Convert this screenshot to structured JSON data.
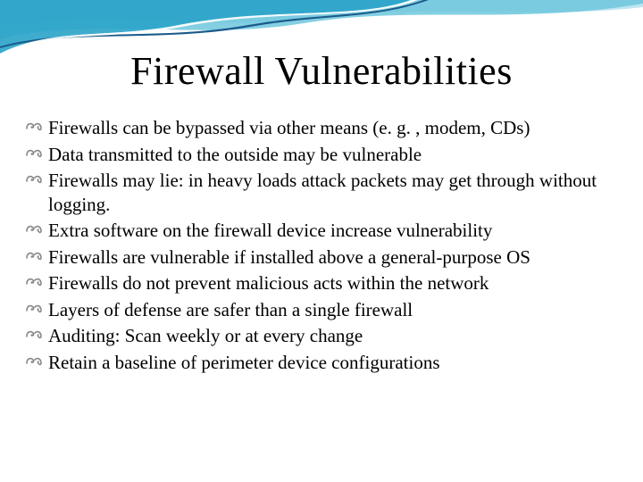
{
  "slide": {
    "title": "Firewall Vulnerabilities",
    "title_color": "#000000",
    "title_fontsize": 44,
    "background_color": "#ffffff",
    "accent_wave_colors": [
      "#2aa3c9",
      "#6fc7dd",
      "#b3e0ee",
      "#1a5a8a"
    ],
    "bullet_glyph": "་་",
    "bullet_color": "#888888",
    "text_color": "#000000",
    "text_fontsize": 21,
    "bullets": [
      "Firewalls can be bypassed via other means (e. g. , modem, CDs)",
      "Data transmitted to the outside may be vulnerable",
      "Firewalls may lie: in heavy loads attack packets may get through without logging.",
      "Extra software on the firewall device increase vulnerability",
      "Firewalls are vulnerable if installed above a general-purpose OS",
      "Firewalls do not prevent malicious acts within the network",
      "Layers of defense are safer than a single firewall",
      "Auditing:  Scan weekly or at every change",
      "Retain a baseline of perimeter device configurations"
    ]
  }
}
